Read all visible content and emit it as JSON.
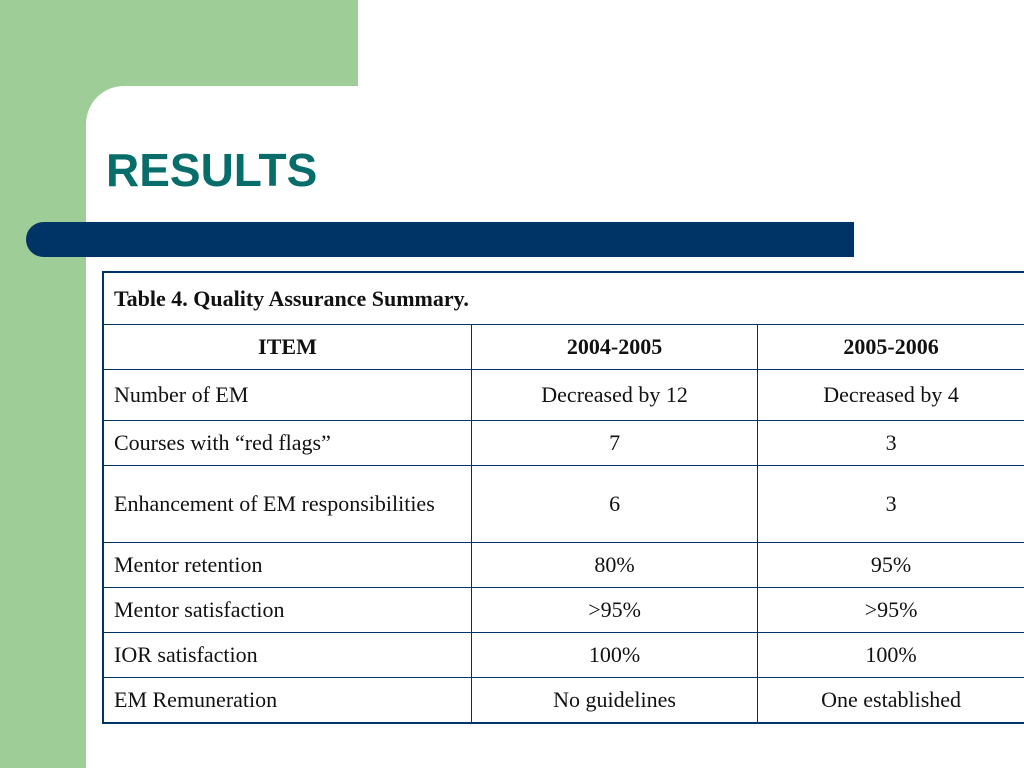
{
  "slide": {
    "title": "RESULTS",
    "colors": {
      "title": "#076d6a",
      "green_band": "#9fcd97",
      "divider_bar": "#003466",
      "table_border": "#003466"
    }
  },
  "table": {
    "caption": "Table 4. Quality Assurance Summary.",
    "headers": [
      "ITEM",
      "2004-2005",
      "2005-2006"
    ],
    "rows": [
      [
        "Number of EM",
        "Decreased by 12",
        "Decreased by 4"
      ],
      [
        "Courses with “red flags”",
        "7",
        "3"
      ],
      [
        "Enhancement of EM responsibilities",
        "6",
        "3"
      ],
      [
        "Mentor retention",
        "80%",
        "95%"
      ],
      [
        "Mentor satisfaction",
        ">95%",
        ">95%"
      ],
      [
        "IOR satisfaction",
        "100%",
        "100%"
      ],
      [
        "EM Remuneration",
        "No guidelines",
        "One established"
      ]
    ]
  }
}
